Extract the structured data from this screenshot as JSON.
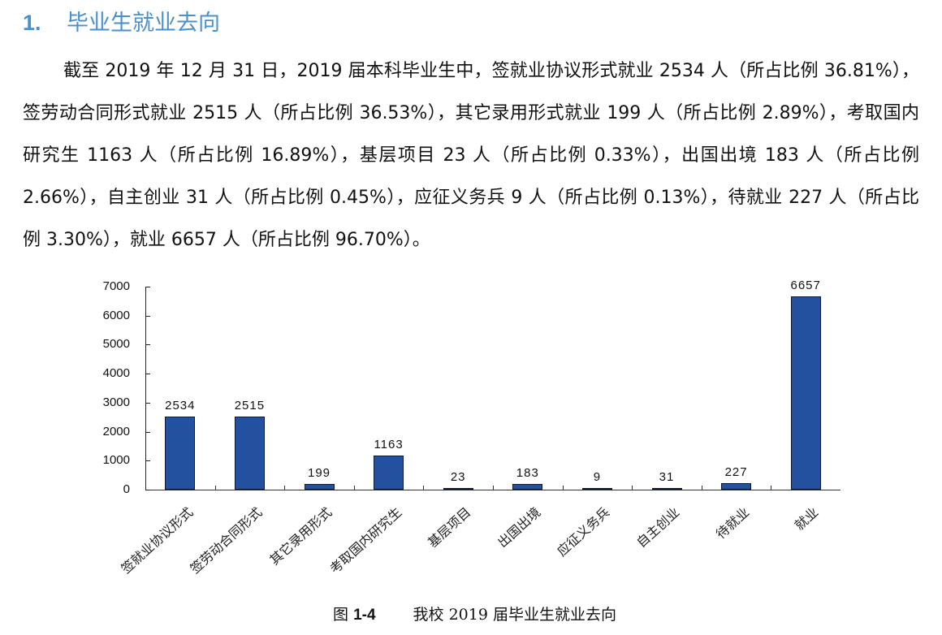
{
  "heading": {
    "number": "1.",
    "title": "毕业生就业去向"
  },
  "paragraph": "截至 2019 年 12 月 31 日，2019 届本科毕业生中，签就业协议形式就业 2534 人（所占比例 36.81%），签劳动合同形式就业 2515 人（所占比例 36.53%），其它录用形式就业 199 人（所占比例 2.89%），考取国内研究生 1163 人（所占比例 16.89%），基层项目 23 人（所占比例 0.33%），出国出境 183 人（所占比例 2.66%），自主创业 31 人（所占比例 0.45%），应征义务兵 9 人（所占比例 0.13%），待就业 227 人（所占比例 3.30%），就业 6657 人（所占比例 96.70%）。",
  "caption": {
    "prefix": "图",
    "number": "1-4",
    "title": "我校 2019 届毕业生就业去向"
  },
  "colors": {
    "heading": "#4a8fd0",
    "bar_fill": "#2351a0",
    "bar_border": "#0b1a3a"
  },
  "chart_data": {
    "type": "bar",
    "title": "我校 2019 届毕业生就业去向",
    "xlabel": "",
    "ylabel": "",
    "ylim": [
      0,
      7000
    ],
    "yticks": [
      "0",
      "1000",
      "2000",
      "3000",
      "4000",
      "5000",
      "6000",
      "7000"
    ],
    "grid": false,
    "legend": null,
    "categories": [
      "签就业协议形式",
      "签劳动合同形式",
      "其它录用形式",
      "考取国内研究生",
      "基层项目",
      "出国出境",
      "应征义务兵",
      "自主创业",
      "待就业",
      "就业"
    ],
    "values": [
      2534,
      2515,
      199,
      1163,
      23,
      183,
      9,
      31,
      227,
      6657
    ],
    "value_labels": [
      "2534",
      "2515",
      "199",
      "1163",
      "23",
      "183",
      "9",
      "31",
      "227",
      "6657"
    ]
  }
}
